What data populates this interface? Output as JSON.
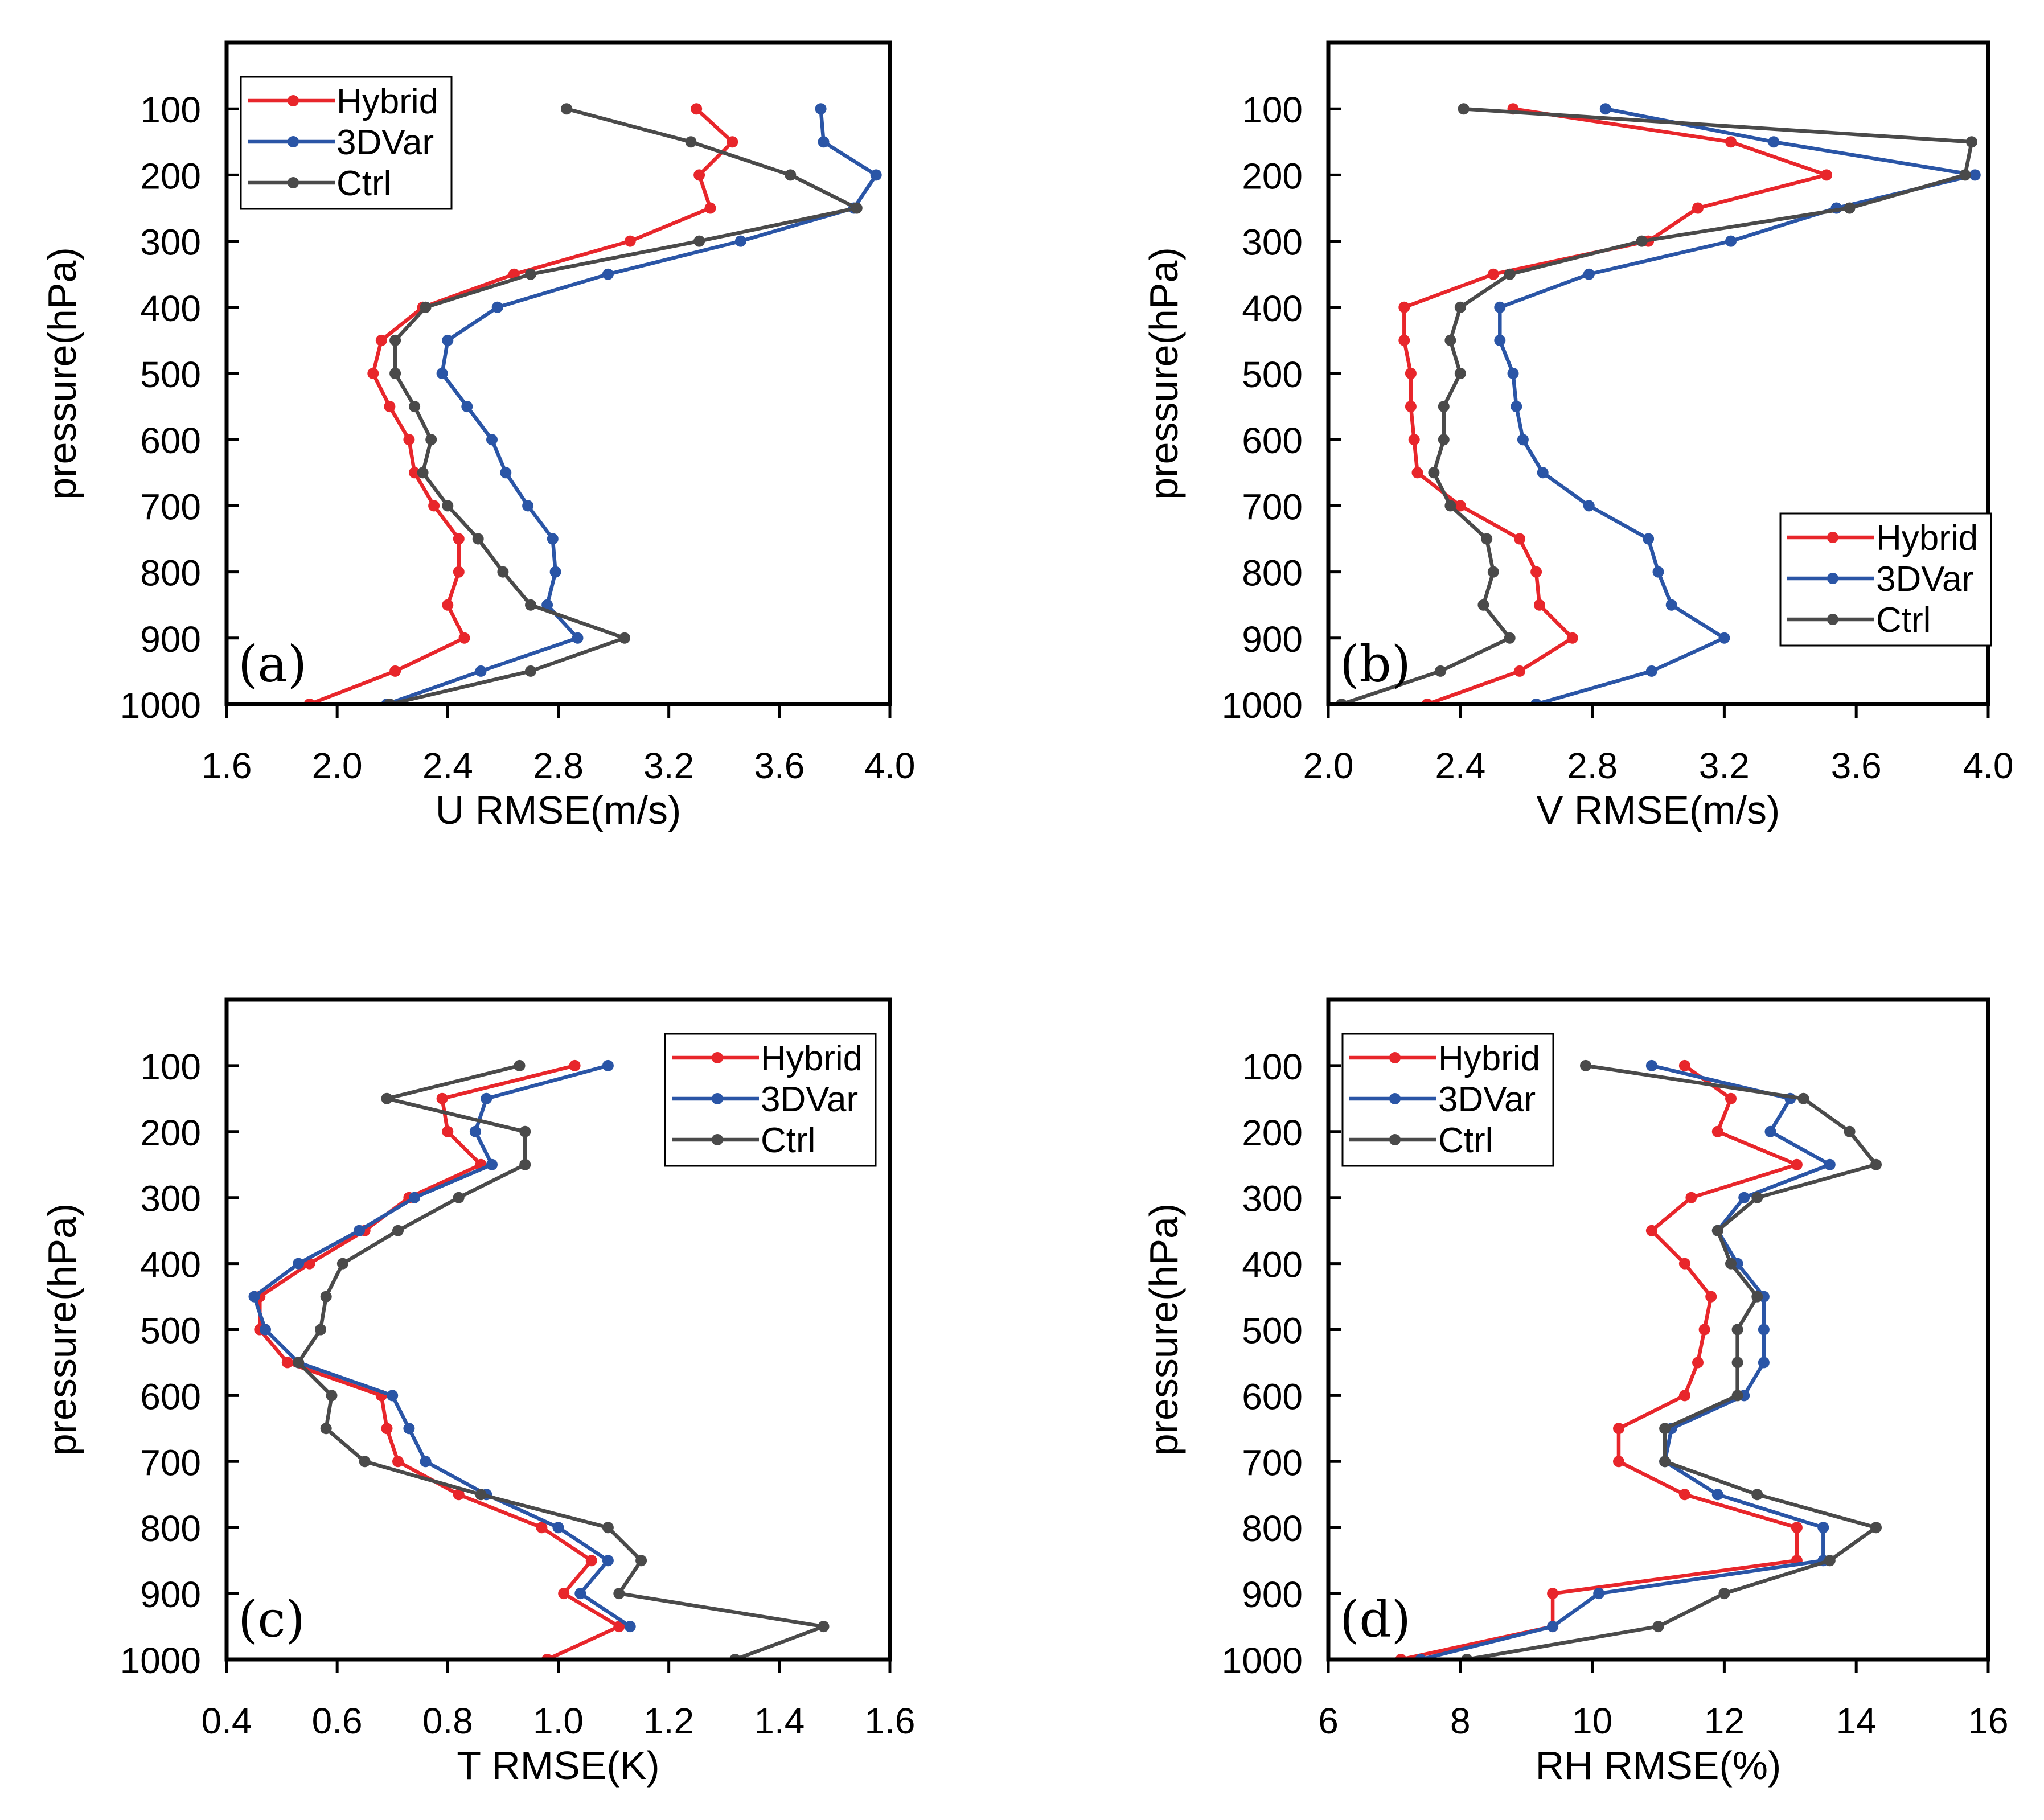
{
  "chart_data": [
    {
      "type": "line",
      "panel_label": "(a)",
      "xlabel": "U RMSE(m/s)",
      "ylabel": "pressure(hPa)",
      "xlim": [
        1.6,
        4.0
      ],
      "xticks": [
        "1.6",
        "2.0",
        "2.4",
        "2.8",
        "3.2",
        "3.6",
        "4.0"
      ],
      "ylim": [
        1000,
        0
      ],
      "yticks": [
        "100",
        "200",
        "300",
        "400",
        "500",
        "600",
        "700",
        "800",
        "900",
        "1000"
      ],
      "legend_position": "top-left",
      "pressure": [
        100,
        150,
        200,
        250,
        300,
        350,
        400,
        450,
        500,
        550,
        600,
        650,
        700,
        750,
        800,
        850,
        900,
        950,
        1000
      ],
      "series": [
        {
          "name": "Hybrid",
          "color": "#e8262b",
          "values": [
            3.3,
            3.43,
            3.31,
            3.35,
            3.06,
            2.64,
            2.31,
            2.16,
            2.13,
            2.19,
            2.26,
            2.28,
            2.35,
            2.44,
            2.44,
            2.4,
            2.46,
            2.21,
            1.9
          ]
        },
        {
          "name": "3DVar",
          "color": "#2a55a6",
          "values": [
            3.75,
            3.76,
            3.95,
            3.87,
            3.46,
            2.98,
            2.58,
            2.4,
            2.38,
            2.47,
            2.56,
            2.61,
            2.69,
            2.78,
            2.79,
            2.76,
            2.87,
            2.52,
            2.18
          ]
        },
        {
          "name": "Ctrl",
          "color": "#4a4a4a",
          "values": [
            2.83,
            3.28,
            3.64,
            3.88,
            3.31,
            2.7,
            2.32,
            2.21,
            2.21,
            2.28,
            2.34,
            2.31,
            2.4,
            2.51,
            2.6,
            2.7,
            3.04,
            2.7,
            2.19
          ]
        }
      ]
    },
    {
      "type": "line",
      "panel_label": "(b)",
      "xlabel": "V RMSE(m/s)",
      "ylabel": "pressure(hPa)",
      "xlim": [
        2.0,
        4.0
      ],
      "xticks": [
        "2.0",
        "2.4",
        "2.8",
        "3.2",
        "3.6",
        "4.0"
      ],
      "ylim": [
        1000,
        0
      ],
      "yticks": [
        "100",
        "200",
        "300",
        "400",
        "500",
        "600",
        "700",
        "800",
        "900",
        "1000"
      ],
      "legend_position": "bottom-right",
      "pressure": [
        100,
        150,
        200,
        250,
        300,
        350,
        400,
        450,
        500,
        550,
        600,
        650,
        700,
        750,
        800,
        850,
        900,
        950,
        1000
      ],
      "series": [
        {
          "name": "Hybrid",
          "color": "#e8262b",
          "values": [
            2.56,
            3.22,
            3.51,
            3.12,
            2.97,
            2.5,
            2.23,
            2.23,
            2.25,
            2.25,
            2.26,
            2.27,
            2.4,
            2.58,
            2.63,
            2.64,
            2.74,
            2.58,
            2.3
          ]
        },
        {
          "name": "3DVar",
          "color": "#2a55a6",
          "values": [
            2.84,
            3.35,
            3.96,
            3.54,
            3.22,
            2.79,
            2.52,
            2.52,
            2.56,
            2.57,
            2.59,
            2.65,
            2.79,
            2.97,
            3.0,
            3.04,
            3.2,
            2.98,
            2.63
          ]
        },
        {
          "name": "Ctrl",
          "color": "#4a4a4a",
          "values": [
            2.41,
            3.95,
            3.93,
            3.58,
            2.95,
            2.55,
            2.4,
            2.37,
            2.4,
            2.35,
            2.35,
            2.32,
            2.37,
            2.48,
            2.5,
            2.47,
            2.55,
            2.34,
            2.04
          ]
        }
      ]
    },
    {
      "type": "line",
      "panel_label": "(c)",
      "xlabel": "T RMSE(K)",
      "ylabel": "pressure(hPa)",
      "xlim": [
        0.4,
        1.6
      ],
      "xticks": [
        "0.4",
        "0.6",
        "0.8",
        "1.0",
        "1.2",
        "1.4",
        "1.6"
      ],
      "ylim": [
        1000,
        0
      ],
      "yticks": [
        "100",
        "200",
        "300",
        "400",
        "500",
        "600",
        "700",
        "800",
        "900",
        "1000"
      ],
      "legend_position": "top-right",
      "pressure": [
        100,
        150,
        200,
        250,
        300,
        350,
        400,
        450,
        500,
        550,
        600,
        650,
        700,
        750,
        800,
        850,
        900,
        950,
        1000
      ],
      "series": [
        {
          "name": "Hybrid",
          "color": "#e8262b",
          "values": [
            1.03,
            0.79,
            0.8,
            0.86,
            0.73,
            0.65,
            0.55,
            0.46,
            0.46,
            0.51,
            0.68,
            0.69,
            0.71,
            0.82,
            0.97,
            1.06,
            1.01,
            1.11,
            0.98
          ]
        },
        {
          "name": "3DVar",
          "color": "#2a55a6",
          "values": [
            1.09,
            0.87,
            0.85,
            0.88,
            0.74,
            0.64,
            0.53,
            0.45,
            0.47,
            0.53,
            0.7,
            0.73,
            0.76,
            0.87,
            1.0,
            1.09,
            1.04,
            1.13,
            null
          ]
        },
        {
          "name": "Ctrl",
          "color": "#4a4a4a",
          "values": [
            0.93,
            0.69,
            0.94,
            0.94,
            0.82,
            0.71,
            0.61,
            0.58,
            0.57,
            0.53,
            0.59,
            0.58,
            0.65,
            0.86,
            1.09,
            1.15,
            1.11,
            1.48,
            1.32
          ]
        }
      ]
    },
    {
      "type": "line",
      "panel_label": "(d)",
      "xlabel": "RH RMSE(%)",
      "ylabel": "pressure(hPa)",
      "xlim": [
        6,
        16
      ],
      "xticks": [
        "6",
        "8",
        "10",
        "12",
        "14",
        "16"
      ],
      "ylim": [
        1000,
        0
      ],
      "yticks": [
        "100",
        "200",
        "300",
        "400",
        "500",
        "600",
        "700",
        "800",
        "900",
        "1000"
      ],
      "legend_position": "top-left",
      "pressure": [
        100,
        150,
        200,
        250,
        300,
        350,
        400,
        450,
        500,
        550,
        600,
        650,
        700,
        750,
        800,
        850,
        900,
        950,
        1000
      ],
      "series": [
        {
          "name": "Hybrid",
          "color": "#e8262b",
          "values": [
            11.4,
            12.1,
            11.9,
            13.1,
            11.5,
            10.9,
            11.4,
            11.8,
            11.7,
            11.6,
            11.4,
            10.4,
            10.4,
            11.4,
            13.1,
            13.1,
            9.4,
            9.4,
            7.1
          ]
        },
        {
          "name": "3DVar",
          "color": "#2a55a6",
          "values": [
            10.9,
            13.0,
            12.7,
            13.6,
            12.3,
            11.9,
            12.2,
            12.6,
            12.6,
            12.6,
            12.3,
            11.2,
            11.1,
            11.9,
            13.5,
            13.5,
            10.1,
            9.4,
            7.4
          ]
        },
        {
          "name": "Ctrl",
          "color": "#4a4a4a",
          "values": [
            9.9,
            13.2,
            13.9,
            14.3,
            12.5,
            11.9,
            12.1,
            12.5,
            12.2,
            12.2,
            12.2,
            11.1,
            11.1,
            12.5,
            14.3,
            13.6,
            12.0,
            11.0,
            8.1
          ]
        }
      ]
    }
  ]
}
